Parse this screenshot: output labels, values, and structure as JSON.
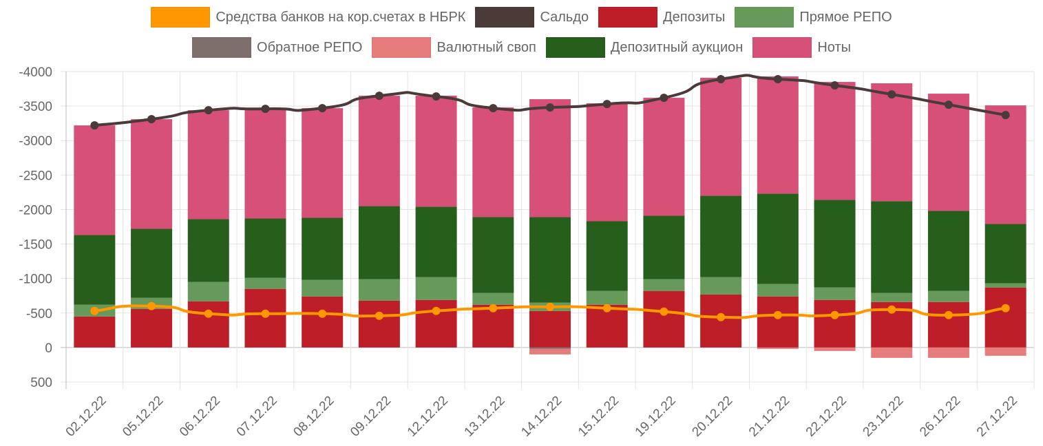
{
  "chart_data": {
    "type": "bar",
    "stacked": true,
    "y_reversed": true,
    "ylim": [
      -4000,
      500
    ],
    "y_ticks": [
      -4000,
      -3500,
      -3000,
      -2500,
      -2000,
      -1500,
      -1000,
      -500,
      0,
      500
    ],
    "grid": true,
    "legend_position": "top",
    "categories": [
      "02.12.22",
      "05.12.22",
      "06.12.22",
      "07.12.22",
      "08.12.22",
      "09.12.22",
      "12.12.22",
      "13.12.22",
      "14.12.22",
      "15.12.22",
      "19.12.22",
      "20.12.22",
      "21.12.22",
      "22.12.22",
      "23.12.22",
      "26.12.22",
      "27.12.22"
    ],
    "series": [
      {
        "name": "Средства банков на кор.счетах в НБРК",
        "kind": "line",
        "color": "#FF9800",
        "values": [
          -530,
          -600,
          -490,
          -490,
          -490,
          -460,
          -530,
          -570,
          -590,
          -570,
          -520,
          -440,
          -470,
          -470,
          -550,
          -470,
          -570
        ]
      },
      {
        "name": "Сальдо",
        "kind": "line",
        "color": "#4A3B39",
        "values": [
          -3220,
          -3310,
          -3440,
          -3460,
          -3470,
          -3650,
          -3640,
          -3470,
          -3480,
          -3530,
          -3620,
          -3890,
          -3890,
          -3800,
          -3670,
          -3520,
          -3370
        ]
      },
      {
        "name": "Депозиты",
        "kind": "bar",
        "color": "#BD1E28",
        "values": [
          -450,
          -560,
          -670,
          -850,
          -740,
          -680,
          -690,
          -620,
          -530,
          -620,
          -820,
          -770,
          -740,
          -690,
          -660,
          -660,
          -870
        ]
      },
      {
        "name": "Прямое РЕПО",
        "kind": "bar",
        "color": "#66995A",
        "values": [
          -170,
          -160,
          -280,
          -160,
          -240,
          -310,
          -330,
          -170,
          -120,
          -200,
          -170,
          -250,
          -180,
          -180,
          -130,
          -160,
          -60
        ]
      },
      {
        "name": "Обратное РЕПО",
        "kind": "bar",
        "color": "#7E6E6C",
        "values": [
          0,
          0,
          0,
          0,
          0,
          0,
          0,
          0,
          20,
          0,
          0,
          0,
          0,
          0,
          0,
          0,
          0
        ]
      },
      {
        "name": "Валютный своп",
        "kind": "bar",
        "color": "#E67C7C",
        "values": [
          0,
          0,
          0,
          0,
          0,
          0,
          0,
          0,
          80,
          0,
          0,
          0,
          20,
          50,
          150,
          150,
          120
        ]
      },
      {
        "name": "Депозитный аукцион",
        "kind": "bar",
        "color": "#265E1B",
        "values": [
          -1010,
          -1000,
          -910,
          -860,
          -900,
          -1060,
          -1020,
          -1100,
          -1240,
          -1010,
          -920,
          -1180,
          -1310,
          -1270,
          -1330,
          -1160,
          -860
        ]
      },
      {
        "name": "Ноты",
        "kind": "bar",
        "color": "#D75077",
        "values": [
          -1590,
          -1590,
          -1580,
          -1590,
          -1590,
          -1600,
          -1610,
          -1590,
          -1710,
          -1710,
          -1710,
          -1710,
          -1700,
          -1710,
          -1710,
          -1700,
          -1720
        ]
      }
    ]
  }
}
